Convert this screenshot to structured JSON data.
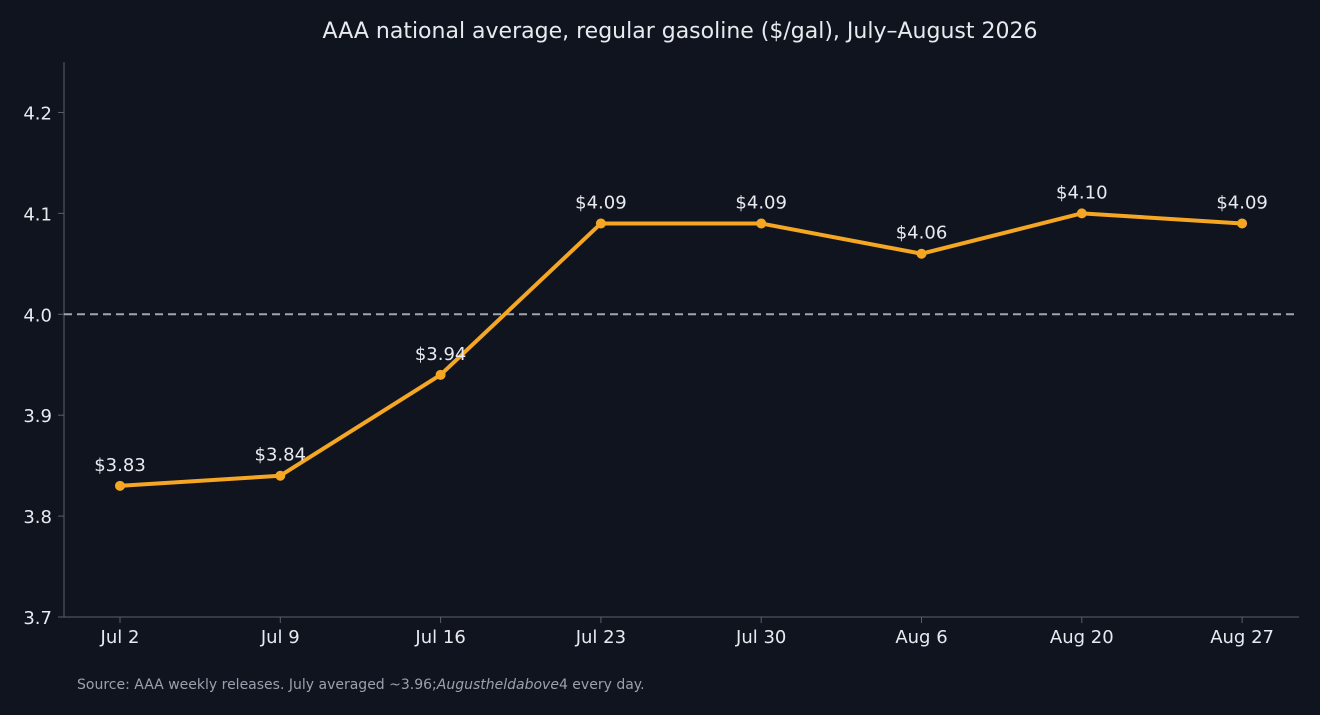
{
  "chart_data": {
    "type": "line",
    "title": "AAA national average, regular gasoline ($/gal), July–August 2026",
    "xlabel": "",
    "ylabel": "",
    "categories": [
      "Jul 2",
      "Jul 9",
      "Jul 16",
      "Jul 23",
      "Jul 30",
      "Aug 6",
      "Aug 20",
      "Aug 27"
    ],
    "series": [
      {
        "values": [
          3.83,
          3.84,
          3.94,
          4.09,
          4.09,
          4.06,
          4.1,
          4.09
        ],
        "data_labels": [
          "$3.83",
          "$3.84",
          "$3.94",
          "$4.09",
          "$4.09",
          "$4.06",
          "$4.10",
          "$4.09"
        ],
        "color": "#f5a623"
      }
    ],
    "ylim": [
      3.7,
      4.25
    ],
    "yticks": [
      3.7,
      3.8,
      3.9,
      4.0,
      4.1,
      4.2
    ],
    "ytick_labels": [
      "3.7",
      "3.8",
      "3.9",
      "4.0",
      "4.1",
      "4.2"
    ],
    "reference_line": {
      "y": 4.0,
      "style": "dashed",
      "color": "#a0a4ad"
    },
    "grid": false,
    "legend": "none"
  },
  "caption": {
    "part1": "Source: AAA weekly releases. July averaged ~3.96;",
    "part2": "Augustheldabove",
    "part3": "4 every day."
  },
  "colors": {
    "background": "#10141f",
    "axis": "#5a5f6b",
    "text": "#e8eaf0",
    "line": "#f5a623"
  }
}
